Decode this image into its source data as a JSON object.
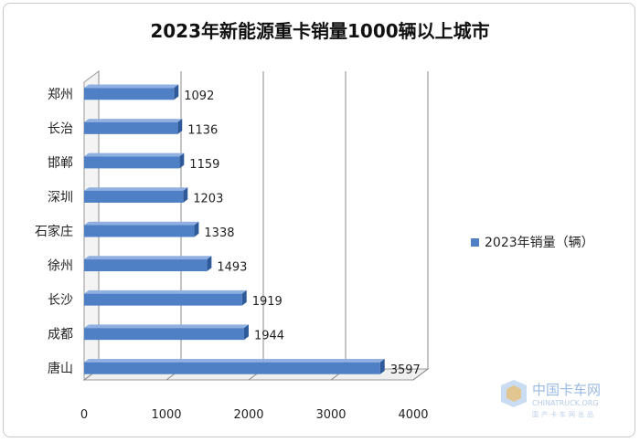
{
  "chart_data": {
    "type": "bar",
    "orientation": "horizontal",
    "title": "2023年新能源重卡销量1000辆以上城市",
    "categories": [
      "郑州",
      "长治",
      "邯郸",
      "深圳",
      "石家庄",
      "徐州",
      "长沙",
      "成都",
      "唐山"
    ],
    "series": [
      {
        "name": "2023年销量（辆）",
        "values": [
          1092,
          1136,
          1159,
          1203,
          1338,
          1493,
          1919,
          1944,
          3597
        ]
      }
    ],
    "xlim": [
      0,
      4000
    ],
    "xticks": [
      0,
      1000,
      2000,
      3000,
      4000
    ],
    "grid": true,
    "legend_position": "right",
    "colors": {
      "bar": "#4f7fc4",
      "bar_side": "#2f5a99",
      "bar_top": "#8fb0e0"
    }
  },
  "watermark": {
    "brand": "中国卡车网",
    "site": "CHINATRUCK.ORG",
    "slogan": "国产卡车网出品"
  }
}
